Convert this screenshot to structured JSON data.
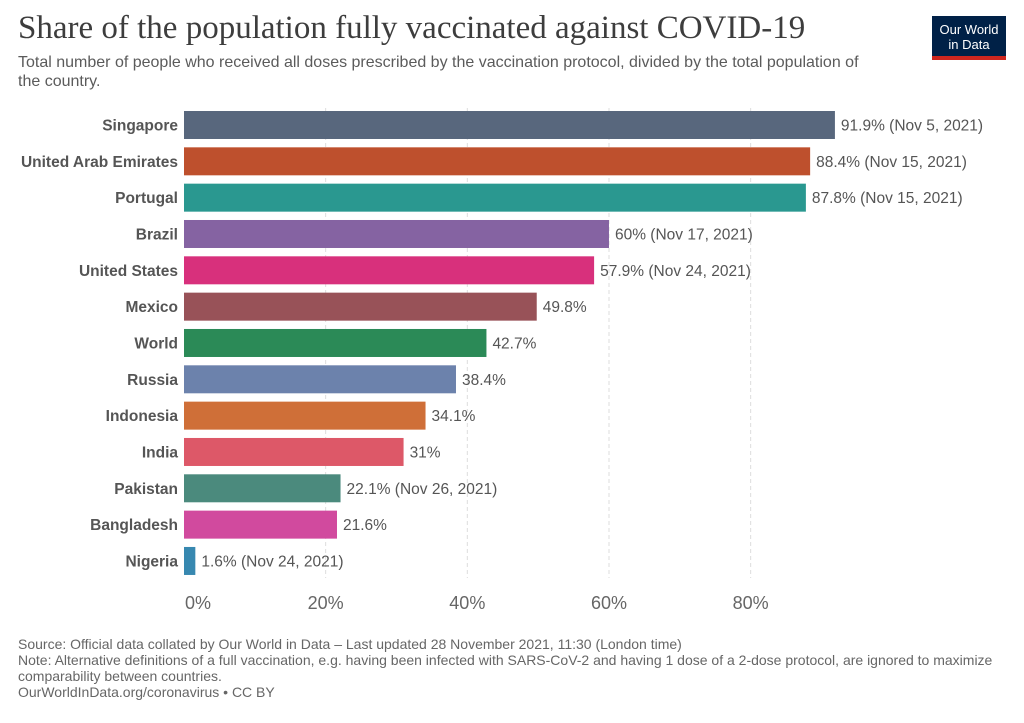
{
  "header": {
    "title": "Share of the population fully vaccinated against COVID-19",
    "subtitle": "Total number of people who received all doses prescribed by the vaccination protocol, divided by the total population of the country."
  },
  "logo": {
    "line1": "Our World",
    "line2": "in Data"
  },
  "chart_data": {
    "type": "bar",
    "orientation": "horizontal",
    "title": "Share of the population fully vaccinated against COVID-19",
    "xlabel": "",
    "ylabel": "",
    "xlim": [
      0,
      100
    ],
    "x_ticks": [
      0,
      20,
      40,
      60,
      80
    ],
    "x_tick_labels": [
      "0%",
      "20%",
      "40%",
      "60%",
      "80%"
    ],
    "grid": true,
    "categories": [
      "Singapore",
      "United Arab Emirates",
      "Portugal",
      "Brazil",
      "United States",
      "Mexico",
      "World",
      "Russia",
      "Indonesia",
      "India",
      "Pakistan",
      "Bangladesh",
      "Nigeria"
    ],
    "values": [
      91.9,
      88.4,
      87.8,
      60,
      57.9,
      49.8,
      42.7,
      38.4,
      34.1,
      31,
      22.1,
      21.6,
      1.6
    ],
    "value_labels": [
      "91.9% (Nov 5, 2021)",
      "88.4% (Nov 15, 2021)",
      "87.8% (Nov 15, 2021)",
      "60% (Nov 17, 2021)",
      "57.9% (Nov 24, 2021)",
      "49.8%",
      "42.7%",
      "38.4%",
      "34.1%",
      "31%",
      "22.1% (Nov 26, 2021)",
      "21.6%",
      "1.6% (Nov 24, 2021)"
    ],
    "colors": [
      "#58677d",
      "#be502d",
      "#2a9890",
      "#8563a2",
      "#d8307c",
      "#985258",
      "#2b8a57",
      "#6c82ac",
      "#cf6f38",
      "#dd5868",
      "#4b8a7d",
      "#d14a9e",
      "#3788b0"
    ]
  },
  "footer": {
    "source": "Source: Official data collated by Our World in Data – Last updated 28 November 2021, 11:30 (London time)",
    "note": "Note: Alternative definitions of a full vaccination, e.g. having been infected with SARS-CoV-2 and having 1 dose of a 2-dose protocol, are ignored to maximize comparability between countries.",
    "link": "OurWorldInData.org/coronavirus • CC BY"
  }
}
